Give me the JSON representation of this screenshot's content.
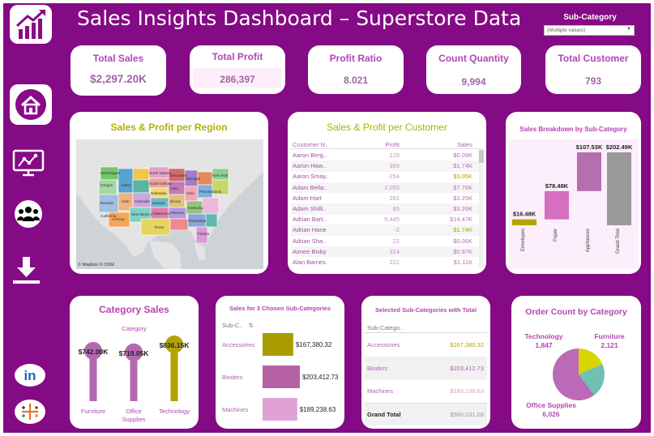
{
  "header": {
    "title": "Sales Insights Dashboard – Superstore Data",
    "filter_label": "Sub-Category",
    "filter_value": "(Multiple values)"
  },
  "sidebar": {
    "items": [
      {
        "icon": "chart-logo-icon"
      },
      {
        "icon": "home-icon"
      },
      {
        "icon": "analytics-icon"
      },
      {
        "icon": "customers-icon"
      },
      {
        "icon": "download-icon"
      },
      {
        "icon": "linkedin-icon",
        "text": "in"
      },
      {
        "icon": "tableau-icon"
      }
    ]
  },
  "kpis": [
    {
      "label": "Total Sales",
      "value": "$2,297.20K"
    },
    {
      "label": "Total Profit",
      "value": "286,397"
    },
    {
      "label": "Profit Ratio",
      "value": "8.021"
    },
    {
      "label": "Count Quantity",
      "value": "9,994"
    },
    {
      "label": "Total Customer",
      "value": "793"
    }
  ],
  "map_panel": {
    "title": "Sales & Profit per Region",
    "credit": "© Mapbox © OSM",
    "states": [
      "Washington",
      "North Dakota",
      "Oregon",
      "Idaho",
      "South Dakota",
      "Wisconsin",
      "Michigan",
      "New York",
      "Nebraska",
      "Iowa",
      "Illinois",
      "Ohio",
      "Pennsylvania",
      "Nevada",
      "Utah",
      "Colorado",
      "Kansas",
      "Missouri",
      "Kentucky",
      "California",
      "Arizona",
      "New Mexico",
      "Oklahoma",
      "Tennessee",
      "Texas",
      "Florida"
    ]
  },
  "customer_table": {
    "title": "Sales & Profit per Customer",
    "columns": [
      "Customer N..",
      "Profit",
      "Sales"
    ],
    "rows": [
      {
        "name": "Aaron Berg..",
        "profit": "129",
        "sales": "$0.09K"
      },
      {
        "name": "Aaron Haw..",
        "profit": "365",
        "sales": "$1.74K"
      },
      {
        "name": "Aaron Smay..",
        "profit": "-254",
        "sales": "$3.05K"
      },
      {
        "name": "Adam Bella..",
        "profit": "2,055",
        "sales": "$7.76K"
      },
      {
        "name": "Adam Hart",
        "profit": "281",
        "sales": "$3.25K"
      },
      {
        "name": "Adam Shilli..",
        "profit": "65",
        "sales": "$3.26K"
      },
      {
        "name": "Adrian Bart..",
        "profit": "5,445",
        "sales": "$14.47K"
      },
      {
        "name": "Adrian Hane",
        "profit": "-2",
        "sales": "$1.74K"
      },
      {
        "name": "Adrian Sha..",
        "profit": "22",
        "sales": "$0.06K"
      },
      {
        "name": "Aimee Bixby",
        "profit": "314",
        "sales": "$0.97K"
      },
      {
        "name": "Alan Barnes",
        "profit": "221",
        "sales": "$1.11K"
      }
    ]
  },
  "breakdown": {
    "title": "Sales Breakdown by Sub-Category",
    "labels": [
      "$16.48K",
      "$78.48K",
      "$107.53K",
      "$202.49K"
    ]
  },
  "category_sales": {
    "title": "Category Sales",
    "subtitle": "Category",
    "labels": [
      "$742.00K",
      "$719.05K",
      "$836.15K"
    ],
    "categories": [
      "Furniture",
      "Office Supplies",
      "Technology"
    ]
  },
  "chosen_sub": {
    "title": "Sales for 3 Chosen Sub-Categories",
    "column": "Sub-C..",
    "rows": [
      {
        "name": "Accessories",
        "value": "$167,380.32"
      },
      {
        "name": "Binders",
        "value": "$203,412.73"
      },
      {
        "name": "Machines",
        "value": "$189,238.63"
      }
    ]
  },
  "selected_sub": {
    "title": "Selected Sub-Categories with Total",
    "column": "Sub-Catego..",
    "rows": [
      {
        "name": "Accessories",
        "value": "$167,380.32"
      },
      {
        "name": "Binders",
        "value": "$203,412.73"
      },
      {
        "name": "Machines",
        "value": "$189,238.63"
      }
    ],
    "total_label": "Grand Total",
    "total_value": "$560,031.68"
  },
  "order_count": {
    "title": "Order Count by Category",
    "slices": [
      {
        "name": "Technology",
        "value": "1,847"
      },
      {
        "name": "Furniture",
        "value": "2,121"
      },
      {
        "name": "Office Supplies",
        "value": "6,026"
      }
    ]
  },
  "chart_data": [
    {
      "type": "bar",
      "title": "Sales Breakdown by Sub-Category",
      "categories": [
        "Envelopes",
        "Paper",
        "Appliances",
        "Grand Total"
      ],
      "values": [
        16.48,
        78.48,
        107.53,
        202.49
      ],
      "colors": [
        "#b1a600",
        "#d56fc0",
        "#b46fae",
        "#9a9a9a"
      ]
    },
    {
      "type": "bar",
      "title": "Category Sales",
      "categories": [
        "Furniture",
        "Office Supplies",
        "Technology"
      ],
      "values": [
        742.0,
        719.05,
        836.15
      ],
      "colors": [
        "#b368b0",
        "#b368b0",
        "#b3a300"
      ]
    },
    {
      "type": "bar",
      "title": "Sales for 3 Chosen Sub-Categories",
      "categories": [
        "Accessories",
        "Binders",
        "Machines"
      ],
      "values": [
        167380.32,
        203412.73,
        189238.63
      ],
      "colors": [
        "#a99c00",
        "#b661a4",
        "#e0a1d5"
      ]
    },
    {
      "type": "pie",
      "title": "Order Count by Category",
      "categories": [
        "Technology",
        "Furniture",
        "Office Supplies"
      ],
      "values": [
        1847,
        2121,
        6026
      ],
      "colors": [
        "#d8d400",
        "#6fc1b3",
        "#ba6ab6"
      ]
    }
  ]
}
